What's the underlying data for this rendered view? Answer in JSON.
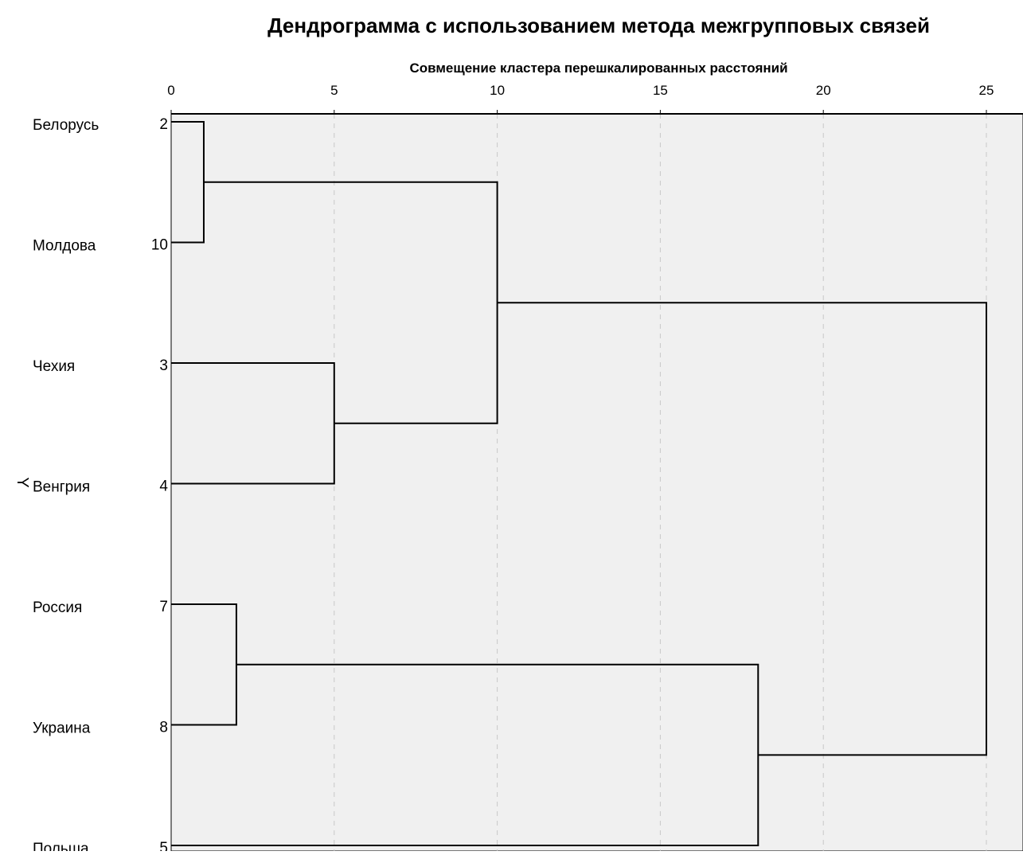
{
  "chart_data": {
    "type": "dendrogram",
    "title": "Дендрограмма с использованием метода межгрупповых связей",
    "xlabel": "Совмещение кластера перешкалированных расстояний",
    "ylabel": "Y",
    "xlim": [
      0,
      25
    ],
    "x_ticks": [
      "0",
      "5",
      "10",
      "15",
      "20",
      "25"
    ],
    "grid": "vertical-dashed",
    "leaves": [
      {
        "name": "Белорусь",
        "case": "2"
      },
      {
        "name": "Молдова",
        "case": "10"
      },
      {
        "name": "Чехия",
        "case": "3"
      },
      {
        "name": "Венгрия",
        "case": "4"
      },
      {
        "name": "Россия",
        "case": "7"
      },
      {
        "name": "Украина",
        "case": "8"
      },
      {
        "name": "Польша",
        "case": "5"
      }
    ],
    "merges": [
      {
        "left": "leaf:0",
        "right": "leaf:1",
        "height": 1
      },
      {
        "left": "leaf:4",
        "right": "leaf:5",
        "height": 2
      },
      {
        "left": "leaf:2",
        "right": "leaf:3",
        "height": 5
      },
      {
        "left": "node:0",
        "right": "node:2",
        "height": 10
      },
      {
        "left": "node:1",
        "right": "leaf:6",
        "height": 18
      },
      {
        "left": "node:3",
        "right": "node:4",
        "height": 25
      }
    ],
    "colors": {
      "plot_background": "#f0f0f0",
      "line": "#000000",
      "grid": "#c8c8c8",
      "text": "#000000"
    }
  }
}
